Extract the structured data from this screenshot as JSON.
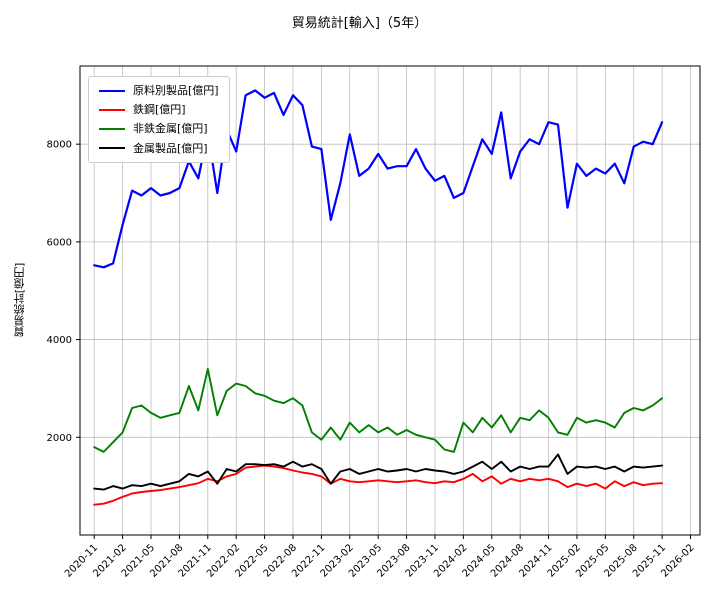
{
  "chart_data": {
    "type": "line",
    "title": "貿易統計[輸入]（5年）",
    "xlabel": "",
    "ylabel": "貿易統計[億円]",
    "grid": true,
    "grid_color": "#bdbdbd",
    "legend_position": "upper left",
    "ylim": [
      0,
      9600
    ],
    "xlim": [
      -1.5,
      64
    ],
    "y_ticks": [
      2000,
      4000,
      6000,
      8000
    ],
    "x_tick_positions": [
      0,
      3,
      6,
      9,
      12,
      15,
      18,
      21,
      24,
      27,
      30,
      33,
      36,
      39,
      42,
      45,
      48,
      51,
      54,
      57,
      60,
      63
    ],
    "x_tick_labels": [
      "2020-11",
      "2021-02",
      "2021-05",
      "2021-08",
      "2021-11",
      "2022-02",
      "2022-05",
      "2022-08",
      "2022-11",
      "2023-02",
      "2023-05",
      "2023-08",
      "2023-11",
      "2024-02",
      "2024-05",
      "2024-08",
      "2024-11",
      "2025-02",
      "2025-05",
      "2025-08",
      "2025-11",
      "2026-02"
    ],
    "x_months": [
      "2020-11",
      "2020-12",
      "2021-01",
      "2021-02",
      "2021-03",
      "2021-04",
      "2021-05",
      "2021-06",
      "2021-07",
      "2021-08",
      "2021-09",
      "2021-10",
      "2021-11",
      "2021-12",
      "2022-01",
      "2022-02",
      "2022-03",
      "2022-04",
      "2022-05",
      "2022-06",
      "2022-07",
      "2022-08",
      "2022-09",
      "2022-10",
      "2022-11",
      "2022-12",
      "2023-01",
      "2023-02",
      "2023-03",
      "2023-04",
      "2023-05",
      "2023-06",
      "2023-07",
      "2023-08",
      "2023-09",
      "2023-10",
      "2023-11",
      "2023-12",
      "2024-01",
      "2024-02",
      "2024-03",
      "2024-04",
      "2024-05",
      "2024-06",
      "2024-07",
      "2024-08",
      "2024-09",
      "2024-10",
      "2024-11",
      "2024-12",
      "2025-01",
      "2025-02",
      "2025-03",
      "2025-04",
      "2025-05",
      "2025-06",
      "2025-07",
      "2025-08",
      "2025-09",
      "2025-10",
      "2025-11"
    ],
    "series": [
      {
        "name": "原料別製品[億円]",
        "color": "#0000ff",
        "values": [
          5520,
          5480,
          5560,
          6350,
          7050,
          6950,
          7100,
          6950,
          7000,
          7100,
          7650,
          7300,
          8250,
          7000,
          8300,
          7850,
          9000,
          9100,
          8950,
          9050,
          8600,
          9000,
          8800,
          7950,
          7900,
          6450,
          7200,
          8200,
          7350,
          7500,
          7800,
          7500,
          7550,
          7550,
          7900,
          7500,
          7250,
          7350,
          6900,
          7000,
          7550,
          8100,
          7800,
          8650,
          7300,
          7850,
          8100,
          8000,
          8450,
          8400,
          6700,
          7600,
          7350,
          7500,
          7400,
          7600,
          7200,
          7950,
          8050,
          8000,
          8450
        ]
      },
      {
        "name": "鉄鋼[億円]",
        "color": "#ff0000",
        "values": [
          620,
          640,
          700,
          780,
          850,
          880,
          900,
          920,
          950,
          980,
          1020,
          1060,
          1150,
          1100,
          1200,
          1250,
          1380,
          1400,
          1420,
          1400,
          1370,
          1320,
          1280,
          1250,
          1200,
          1050,
          1150,
          1100,
          1080,
          1100,
          1120,
          1100,
          1080,
          1100,
          1120,
          1080,
          1060,
          1100,
          1080,
          1150,
          1250,
          1100,
          1200,
          1050,
          1150,
          1100,
          1150,
          1120,
          1150,
          1100,
          980,
          1050,
          1000,
          1050,
          950,
          1100,
          1000,
          1080,
          1020,
          1050,
          1060
        ]
      },
      {
        "name": "非鉄金属[億円]",
        "color": "#008000",
        "values": [
          1800,
          1700,
          1900,
          2100,
          2600,
          2650,
          2500,
          2400,
          2450,
          2500,
          3050,
          2550,
          3400,
          2450,
          2950,
          3100,
          3050,
          2900,
          2850,
          2750,
          2700,
          2800,
          2650,
          2100,
          1950,
          2200,
          1950,
          2300,
          2100,
          2250,
          2100,
          2200,
          2050,
          2150,
          2050,
          2000,
          1950,
          1750,
          1700,
          2300,
          2100,
          2400,
          2200,
          2450,
          2100,
          2400,
          2350,
          2550,
          2400,
          2100,
          2050,
          2400,
          2300,
          2350,
          2300,
          2200,
          2500,
          2600,
          2550,
          2650,
          2800
        ]
      },
      {
        "name": "金属製品[億円]",
        "color": "#000000",
        "values": [
          950,
          930,
          1000,
          950,
          1020,
          1000,
          1050,
          1000,
          1050,
          1100,
          1250,
          1200,
          1300,
          1050,
          1350,
          1300,
          1450,
          1450,
          1430,
          1450,
          1400,
          1500,
          1400,
          1450,
          1350,
          1050,
          1300,
          1350,
          1250,
          1300,
          1350,
          1300,
          1320,
          1350,
          1300,
          1350,
          1320,
          1300,
          1250,
          1300,
          1400,
          1500,
          1350,
          1500,
          1300,
          1400,
          1350,
          1400,
          1400,
          1650,
          1250,
          1400,
          1380,
          1400,
          1350,
          1400,
          1300,
          1400,
          1380,
          1400,
          1420
        ]
      }
    ]
  }
}
